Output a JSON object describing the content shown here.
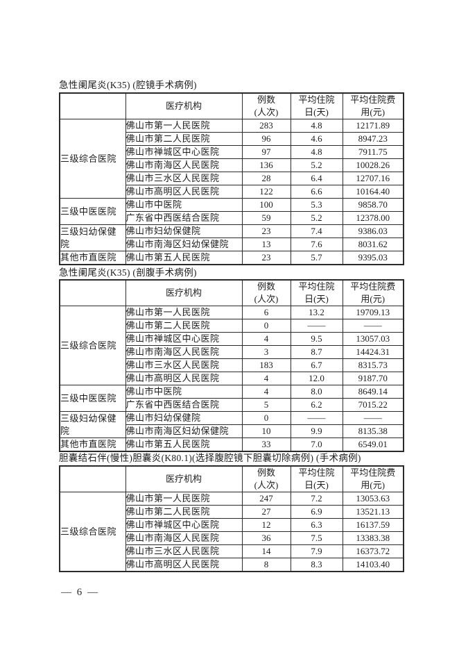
{
  "page": {
    "footer_page_number": "— 6 —"
  },
  "tables": [
    {
      "title": "急性阑尾炎(K35) (腔镜手术病例)",
      "columns": [
        "",
        "医疗机构",
        "例数\n(人次)",
        "平均住院\n日(天)",
        "平均住院费\n用(元)"
      ],
      "groups": [
        {
          "category": "三级综合医院",
          "rows": [
            [
              "佛山市第一人民医院",
              "283",
              "4.8",
              "12171.89"
            ],
            [
              "佛山市第二人民医院",
              "96",
              "4.6",
              "8947.23"
            ],
            [
              "佛山市禅城区中心医院",
              "97",
              "4.8",
              "7911.75"
            ],
            [
              "佛山市南海区人民医院",
              "136",
              "5.2",
              "10028.26"
            ],
            [
              "佛山市三水区人民医院",
              "28",
              "6.4",
              "12707.16"
            ],
            [
              "佛山市高明区人民医院",
              "122",
              "6.6",
              "10164.40"
            ]
          ]
        },
        {
          "category": "三级中医医院",
          "rows": [
            [
              "佛山市中医院",
              "100",
              "5.3",
              "9858.70"
            ],
            [
              "广东省中西医结合医院",
              "59",
              "5.2",
              "12378.00"
            ]
          ]
        },
        {
          "category": "三级妇幼保健院",
          "rows": [
            [
              "佛山市妇幼保健院",
              "23",
              "7.4",
              "9386.03"
            ],
            [
              "佛山市南海区妇幼保健院",
              "13",
              "7.6",
              "8031.62"
            ]
          ]
        },
        {
          "category": "其他市直医院",
          "rows": [
            [
              "佛山市第五人民医院",
              "23",
              "5.7",
              "9395.03"
            ]
          ]
        }
      ]
    },
    {
      "title": "急性阑尾炎(K35) (剖腹手术病例)",
      "columns": [
        "",
        "医疗机构",
        "例数\n(人次)",
        "平均住院\n日(天)",
        "平均住院费\n用(元)"
      ],
      "groups": [
        {
          "category": "三级综合医院",
          "rows": [
            [
              "佛山市第一人民医院",
              "6",
              "13.2",
              "19709.13"
            ],
            [
              "佛山市第二人民医院",
              "0",
              "——",
              "——"
            ],
            [
              "佛山市禅城区中心医院",
              "4",
              "9.5",
              "13057.03"
            ],
            [
              "佛山市南海区人民医院",
              "3",
              "8.7",
              "14424.31"
            ],
            [
              "佛山市三水区人民医院",
              "183",
              "6.7",
              "8315.73"
            ],
            [
              "佛山市高明区人民医院",
              "4",
              "12.0",
              "9187.70"
            ]
          ]
        },
        {
          "category": "三级中医医院",
          "rows": [
            [
              "佛山市中医院",
              "4",
              "8.0",
              "8649.14"
            ],
            [
              "广东省中西医结合医院",
              "5",
              "6.2",
              "7015.22"
            ]
          ]
        },
        {
          "category": "三级妇幼保健院",
          "rows": [
            [
              "佛山市妇幼保健院",
              "0",
              "——",
              "——"
            ],
            [
              "佛山市南海区妇幼保健院",
              "10",
              "9.9",
              "8135.38"
            ]
          ]
        },
        {
          "category": "其他市直医院",
          "rows": [
            [
              "佛山市第五人民医院",
              "33",
              "7.0",
              "6549.01"
            ]
          ]
        }
      ]
    },
    {
      "title": "胆囊结石伴(慢性)胆囊炎(K80.1)(选择腹腔镜下胆囊切除病例) (手术病例)",
      "columns": [
        "",
        "医疗机构",
        "例数\n(人次)",
        "平均住院\n日(天)",
        "平均住院费\n用(元)"
      ],
      "groups": [
        {
          "category": "三级综合医院",
          "rows": [
            [
              "佛山市第一人民医院",
              "247",
              "7.2",
              "13053.63"
            ],
            [
              "佛山市第二人民医院",
              "27",
              "6.9",
              "13521.13"
            ],
            [
              "佛山市禅城区中心医院",
              "12",
              "6.3",
              "16137.59"
            ],
            [
              "佛山市南海区人民医院",
              "36",
              "7.5",
              "13383.38"
            ],
            [
              "佛山市三水区人民医院",
              "14",
              "7.9",
              "16373.72"
            ],
            [
              "佛山市高明区人民医院",
              "8",
              "8.3",
              "14103.40"
            ]
          ]
        }
      ]
    }
  ]
}
